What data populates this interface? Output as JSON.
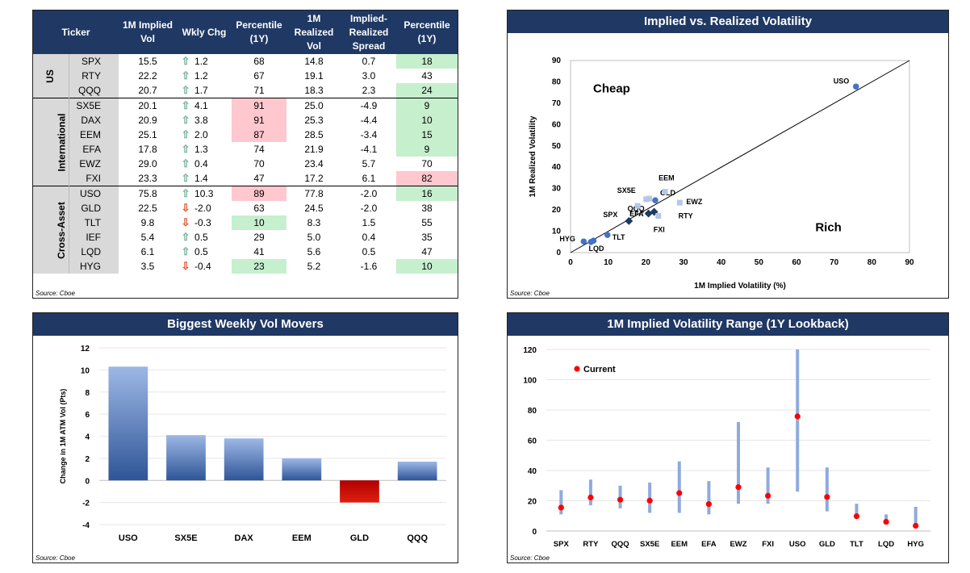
{
  "table": {
    "headers": [
      "Ticker",
      "1M Implied Vol",
      "Wkly Chg",
      "Percentile (1Y)",
      "1M Realized Vol",
      "Implied-Realized Spread",
      "Percentile (1Y)"
    ],
    "groups": [
      {
        "name": "US",
        "rows": [
          {
            "ticker": "SPX",
            "iv": "15.5",
            "dir": "up",
            "chg": "1.2",
            "pct": "68",
            "pct_flag": "",
            "rv": "14.8",
            "spread": "0.7",
            "pct2": "18",
            "pct2_flag": "good"
          },
          {
            "ticker": "RTY",
            "iv": "22.2",
            "dir": "up",
            "chg": "1.2",
            "pct": "67",
            "pct_flag": "",
            "rv": "19.1",
            "spread": "3.0",
            "pct2": "43",
            "pct2_flag": ""
          },
          {
            "ticker": "QQQ",
            "iv": "20.7",
            "dir": "up",
            "chg": "1.7",
            "pct": "71",
            "pct_flag": "",
            "rv": "18.3",
            "spread": "2.3",
            "pct2": "24",
            "pct2_flag": "good"
          }
        ]
      },
      {
        "name": "International",
        "rows": [
          {
            "ticker": "SX5E",
            "iv": "20.1",
            "dir": "up",
            "chg": "4.1",
            "pct": "91",
            "pct_flag": "bad",
            "rv": "25.0",
            "spread": "-4.9",
            "pct2": "9",
            "pct2_flag": "good"
          },
          {
            "ticker": "DAX",
            "iv": "20.9",
            "dir": "up",
            "chg": "3.8",
            "pct": "91",
            "pct_flag": "bad",
            "rv": "25.3",
            "spread": "-4.4",
            "pct2": "10",
            "pct2_flag": "good"
          },
          {
            "ticker": "EEM",
            "iv": "25.1",
            "dir": "up",
            "chg": "2.0",
            "pct": "87",
            "pct_flag": "bad",
            "rv": "28.5",
            "spread": "-3.4",
            "pct2": "15",
            "pct2_flag": "good"
          },
          {
            "ticker": "EFA",
            "iv": "17.8",
            "dir": "up",
            "chg": "1.3",
            "pct": "74",
            "pct_flag": "",
            "rv": "21.9",
            "spread": "-4.1",
            "pct2": "9",
            "pct2_flag": "good"
          },
          {
            "ticker": "EWZ",
            "iv": "29.0",
            "dir": "up",
            "chg": "0.4",
            "pct": "70",
            "pct_flag": "",
            "rv": "23.4",
            "spread": "5.7",
            "pct2": "70",
            "pct2_flag": ""
          },
          {
            "ticker": "FXI",
            "iv": "23.3",
            "dir": "up",
            "chg": "1.4",
            "pct": "47",
            "pct_flag": "",
            "rv": "17.2",
            "spread": "6.1",
            "pct2": "82",
            "pct2_flag": "bad"
          }
        ]
      },
      {
        "name": "Cross-Asset",
        "rows": [
          {
            "ticker": "USO",
            "iv": "75.8",
            "dir": "up",
            "chg": "10.3",
            "pct": "89",
            "pct_flag": "bad",
            "rv": "77.8",
            "spread": "-2.0",
            "pct2": "16",
            "pct2_flag": "good"
          },
          {
            "ticker": "GLD",
            "iv": "22.5",
            "dir": "down",
            "chg": "-2.0",
            "pct": "63",
            "pct_flag": "",
            "rv": "24.5",
            "spread": "-2.0",
            "pct2": "38",
            "pct2_flag": ""
          },
          {
            "ticker": "TLT",
            "iv": "9.8",
            "dir": "down",
            "chg": "-0.3",
            "pct": "10",
            "pct_flag": "good",
            "rv": "8.3",
            "spread": "1.5",
            "pct2": "55",
            "pct2_flag": ""
          },
          {
            "ticker": "IEF",
            "iv": "5.4",
            "dir": "up",
            "chg": "0.5",
            "pct": "29",
            "pct_flag": "",
            "rv": "5.0",
            "spread": "0.4",
            "pct2": "35",
            "pct2_flag": ""
          },
          {
            "ticker": "LQD",
            "iv": "6.1",
            "dir": "up",
            "chg": "0.5",
            "pct": "41",
            "pct_flag": "",
            "rv": "5.6",
            "spread": "0.5",
            "pct2": "47",
            "pct2_flag": ""
          },
          {
            "ticker": "HYG",
            "iv": "3.5",
            "dir": "down",
            "chg": "-0.4",
            "pct": "23",
            "pct_flag": "good",
            "rv": "5.2",
            "spread": "-1.6",
            "pct2": "10",
            "pct2_flag": "good"
          }
        ]
      }
    ],
    "source": "Source: Cboe"
  },
  "chart_data": [
    {
      "type": "scatter",
      "title": "Implied vs. Realized Volatility",
      "xlabel": "1M Implied Volatility  (%)",
      "ylabel": "1M Realized Volatility",
      "xlim": [
        0,
        90
      ],
      "ylim": [
        0,
        90
      ],
      "ticks": [
        0,
        10,
        20,
        30,
        40,
        50,
        60,
        70,
        80,
        90
      ],
      "annotations": [
        "Cheap",
        "Rich"
      ],
      "points": [
        {
          "label": "USO",
          "x": 75.8,
          "y": 77.8,
          "group": "Cross-Asset"
        },
        {
          "label": "GLD",
          "x": 22.5,
          "y": 24.5,
          "group": "Cross-Asset"
        },
        {
          "label": "TLT",
          "x": 9.8,
          "y": 8.3,
          "group": "Cross-Asset"
        },
        {
          "label": "",
          "x": 5.4,
          "y": 5.0,
          "group": "Cross-Asset"
        },
        {
          "label": "LQD",
          "x": 6.1,
          "y": 5.6,
          "group": "Cross-Asset"
        },
        {
          "label": "HYG",
          "x": 3.5,
          "y": 5.2,
          "group": "Cross-Asset"
        },
        {
          "label": "SPX",
          "x": 15.5,
          "y": 14.8,
          "group": "US"
        },
        {
          "label": "RTY",
          "x": 22.2,
          "y": 19.1,
          "group": "US"
        },
        {
          "label": "QQQ",
          "x": 20.7,
          "y": 18.3,
          "group": "US"
        },
        {
          "label": "SX5E",
          "x": 20.1,
          "y": 25.0,
          "group": "International"
        },
        {
          "label": "",
          "x": 20.9,
          "y": 25.3,
          "group": "International"
        },
        {
          "label": "EEM",
          "x": 25.1,
          "y": 28.5,
          "group": "International"
        },
        {
          "label": "EFA",
          "x": 17.8,
          "y": 21.9,
          "group": "International"
        },
        {
          "label": "EWZ",
          "x": 29.0,
          "y": 23.4,
          "group": "International"
        },
        {
          "label": "FXI",
          "x": 23.3,
          "y": 17.2,
          "group": "International"
        }
      ],
      "colors": {
        "US": "#1f3864",
        "International": "#b4c7e7",
        "Cross-Asset": "#4472c4"
      },
      "source": "Source: Cboe"
    },
    {
      "type": "bar",
      "title": "Biggest Weekly Vol Movers",
      "ylabel": "Change in 1M ATM Vol (Pts)",
      "categories": [
        "USO",
        "SX5E",
        "DAX",
        "EEM",
        "GLD",
        "QQQ"
      ],
      "values": [
        10.3,
        4.1,
        3.8,
        2.0,
        -2.0,
        1.7
      ],
      "ylim": [
        -4,
        12
      ],
      "ticks": [
        -4,
        -2,
        0,
        2,
        4,
        6,
        8,
        10,
        12
      ],
      "grid": true,
      "colors": {
        "positive": "#2f5597",
        "negative": "#e02010"
      },
      "source": "Source: Cboe"
    },
    {
      "type": "range",
      "title": "1M Implied Volatility Range (1Y Lookback)",
      "legend": "Current",
      "categories": [
        "SPX",
        "RTY",
        "QQQ",
        "SX5E",
        "EEM",
        "EFA",
        "EWZ",
        "FXI",
        "USO",
        "GLD",
        "TLT",
        "LQD",
        "HYG"
      ],
      "low": [
        11,
        17,
        15,
        12,
        12,
        11,
        18,
        18,
        26,
        13,
        8,
        5,
        2
      ],
      "high": [
        27,
        34,
        30,
        32,
        46,
        33,
        72,
        42,
        122,
        42,
        18,
        11,
        16
      ],
      "current": [
        15.5,
        22.2,
        20.7,
        20.1,
        25.1,
        17.8,
        29.0,
        23.3,
        75.8,
        22.5,
        9.8,
        6.1,
        3.5
      ],
      "ylim": [
        0,
        120
      ],
      "ticks": [
        0,
        20,
        40,
        60,
        80,
        100,
        120
      ],
      "colors": {
        "range": "#8faadc",
        "current": "#ff0000"
      },
      "source": "Source: Cboe"
    }
  ]
}
